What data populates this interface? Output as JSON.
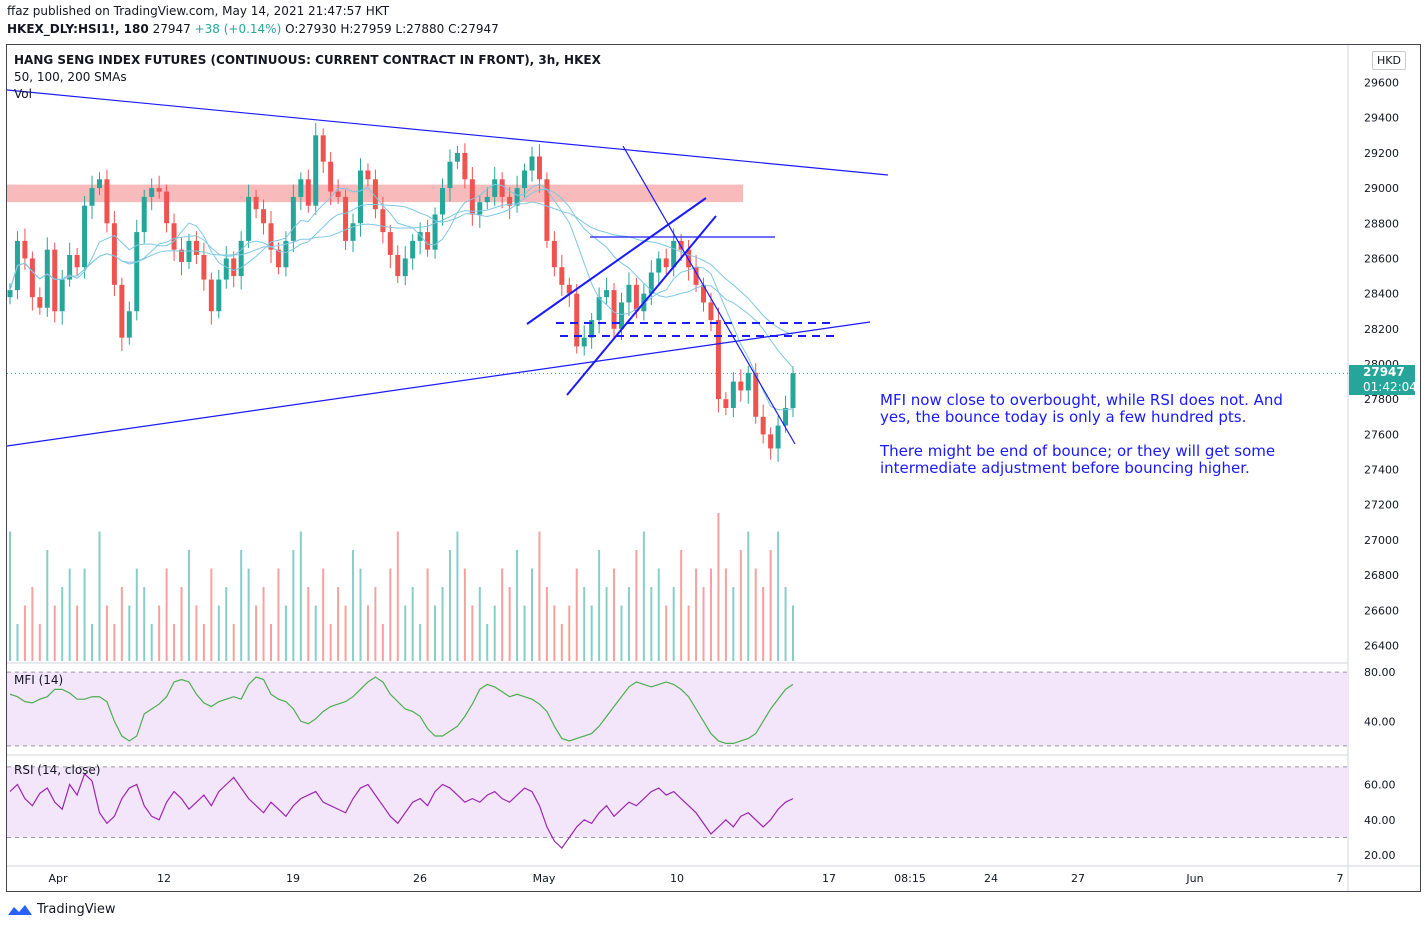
{
  "header": {
    "publisher_line": "ffaz published on TradingView.com, May 14, 2021 21:47:57 HKT",
    "symbol": "HKEX_DLY:HSI1!, 180",
    "last": "27947",
    "change": "+38 (+0.14%)",
    "ohlc": "O:27930 H:27959 L:27880 C:27947"
  },
  "pane_labels": {
    "title": "HANG SENG INDEX FUTURES (CONTINUOUS: CURRENT CONTRACT IN FRONT), 3h, HKEX",
    "smas": "50, 100, 200 SMAs",
    "vol": "Vol",
    "mfi": "MFI (14)",
    "rsi": "RSI (14, close)",
    "currency": "HKD"
  },
  "price_tag": {
    "price": "27947",
    "countdown": "01:42:04"
  },
  "annotation": {
    "para1": "MFI now close to overbought, while RSI does not. And yes, the bounce today is only a few hundred pts.",
    "para2": "There might be end of bounce; or they will get some intermediate adjustment before bouncing higher."
  },
  "footer": {
    "brand": "TradingView"
  },
  "colors": {
    "up": "#26a69a",
    "down": "#ef5350",
    "drawing": "#1a1aff",
    "sma": "#7ec8e3",
    "resistance_zone": "#f5a3a3",
    "indicator_fill": "#f3e5fa",
    "mfi_line": "#4caf50",
    "rsi_line": "#9c27b0"
  },
  "chart_data": [
    {
      "type": "candlestick",
      "title": "HANG SENG INDEX FUTURES (CONTINUOUS: CURRENT CONTRACT IN FRONT), 3h, HKEX",
      "y_ticks": [
        29600,
        29400,
        29200,
        29000,
        28800,
        28600,
        28400,
        28200,
        28000,
        27800,
        27600,
        27400,
        27200,
        27000,
        26800,
        26600,
        26400
      ],
      "ylim": [
        26340,
        29660
      ],
      "x_ticks": [
        "Apr",
        "12",
        "19",
        "26",
        "May",
        "10",
        "17",
        "08:15",
        "24",
        "27",
        "Jun",
        "7"
      ],
      "last_price": 27947,
      "closes": [
        28420,
        28700,
        28600,
        28380,
        28320,
        28650,
        28300,
        28480,
        28620,
        28550,
        28900,
        29000,
        29050,
        28800,
        28450,
        28150,
        28300,
        28750,
        28950,
        29000,
        28980,
        28800,
        28650,
        28580,
        28700,
        28620,
        28480,
        28300,
        28480,
        28600,
        28500,
        28700,
        28950,
        28880,
        28800,
        28650,
        28550,
        28700,
        28950,
        29050,
        28900,
        29300,
        29150,
        28980,
        28950,
        28700,
        28800,
        29100,
        29050,
        28880,
        28750,
        28620,
        28500,
        28600,
        28700,
        28750,
        28650,
        28850,
        29000,
        29150,
        29200,
        29050,
        28850,
        28920,
        28950,
        29050,
        28950,
        28900,
        29000,
        29100,
        29180,
        29050,
        28700,
        28550,
        28450,
        28400,
        28100,
        28150,
        28250,
        28380,
        28420,
        28200,
        28350,
        28450,
        28300,
        28400,
        28520,
        28600,
        28550,
        28700,
        28650,
        28550,
        28450,
        28350,
        28250,
        27800,
        27750,
        27900,
        27850,
        27950,
        27700,
        27600,
        27520,
        27650,
        27750,
        27947
      ],
      "smas": [
        "50",
        "100",
        "200"
      ]
    },
    {
      "type": "bar",
      "name": "Vol",
      "values": [
        7,
        2,
        3,
        4,
        2,
        6,
        3,
        4,
        5,
        3,
        5,
        2,
        7,
        3,
        2,
        4,
        3,
        5,
        4,
        2,
        3,
        5,
        2,
        4,
        6,
        3,
        2,
        5,
        3,
        4,
        2,
        6,
        5,
        3,
        4,
        2,
        5,
        3,
        6,
        7,
        4,
        3,
        5,
        2,
        4,
        3,
        6,
        5,
        3,
        4,
        2,
        5,
        7,
        3,
        4,
        2,
        5,
        3,
        4,
        6,
        7,
        5,
        3,
        4,
        2,
        3,
        5,
        4,
        6,
        3,
        5,
        7,
        4,
        3,
        2,
        3,
        5,
        4,
        3,
        6,
        4,
        5,
        3,
        4,
        6,
        7,
        4,
        5,
        3,
        4,
        6,
        3,
        5,
        4,
        5,
        8,
        5,
        4,
        6,
        7,
        5,
        4,
        6,
        7,
        4,
        3
      ]
    },
    {
      "type": "line",
      "name": "MFI (14)",
      "y_ticks": [
        80.0,
        40.0
      ],
      "ylim": [
        15,
        85
      ],
      "bands": [
        80,
        20
      ],
      "values": [
        62,
        60,
        56,
        55,
        58,
        60,
        66,
        66,
        63,
        58,
        58,
        60,
        60,
        56,
        40,
        28,
        24,
        28,
        46,
        50,
        54,
        60,
        72,
        74,
        72,
        62,
        55,
        52,
        56,
        58,
        60,
        58,
        70,
        76,
        74,
        62,
        58,
        56,
        50,
        40,
        38,
        42,
        48,
        52,
        54,
        56,
        60,
        66,
        72,
        76,
        72,
        62,
        56,
        50,
        48,
        44,
        34,
        28,
        28,
        32,
        36,
        44,
        54,
        66,
        70,
        68,
        64,
        60,
        62,
        60,
        58,
        54,
        48,
        36,
        26,
        24,
        26,
        28,
        30,
        36,
        44,
        52,
        60,
        68,
        72,
        70,
        68,
        70,
        72,
        70,
        66,
        60,
        50,
        40,
        30,
        24,
        22,
        22,
        24,
        26,
        30,
        40,
        50,
        58,
        66,
        70
      ]
    },
    {
      "type": "line",
      "name": "RSI (14, close)",
      "y_ticks": [
        60.0,
        40.0,
        20.0
      ],
      "ylim": [
        15,
        75
      ],
      "bands": [
        70,
        30
      ],
      "values": [
        56,
        60,
        52,
        48,
        55,
        58,
        50,
        46,
        60,
        54,
        66,
        62,
        44,
        38,
        42,
        52,
        58,
        60,
        48,
        42,
        40,
        50,
        56,
        52,
        46,
        50,
        54,
        48,
        56,
        60,
        64,
        58,
        52,
        48,
        44,
        50,
        46,
        42,
        48,
        52,
        54,
        56,
        50,
        48,
        46,
        44,
        52,
        58,
        60,
        54,
        48,
        42,
        38,
        44,
        50,
        52,
        48,
        56,
        60,
        58,
        54,
        50,
        52,
        50,
        54,
        56,
        52,
        50,
        54,
        58,
        56,
        48,
        36,
        28,
        24,
        30,
        36,
        40,
        38,
        44,
        48,
        42,
        46,
        50,
        48,
        52,
        56,
        58,
        54,
        56,
        52,
        48,
        44,
        38,
        32,
        36,
        40,
        36,
        42,
        44,
        40,
        36,
        40,
        46,
        50,
        52
      ]
    }
  ]
}
